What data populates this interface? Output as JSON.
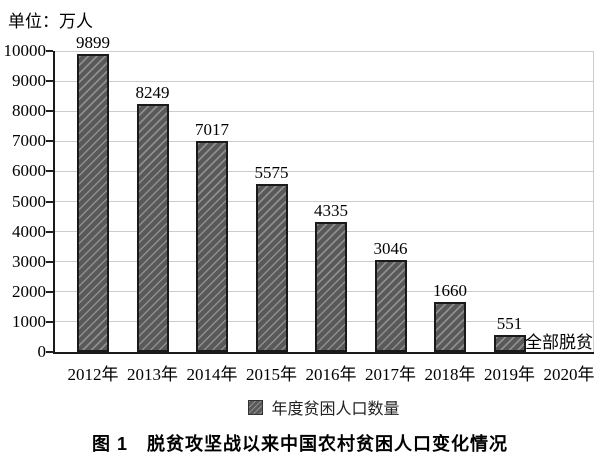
{
  "unit_label": "单位：万人",
  "legend_label": "年度贫困人口数量",
  "caption": "图 1　脱贫攻坚战以来中国农村贫困人口变化情况",
  "chart_data": {
    "type": "bar",
    "title": "图 1 脱贫攻坚战以来中国农村贫困人口变化情况",
    "unit": "单位：万人",
    "categories": [
      "2012年",
      "2013年",
      "2014年",
      "2015年",
      "2016年",
      "2017年",
      "2018年",
      "2019年",
      "2020年"
    ],
    "values": [
      9899,
      8249,
      7017,
      5575,
      4335,
      3046,
      1660,
      551,
      null
    ],
    "annotation": {
      "text": "全部脱贫",
      "category": "2020年",
      "meaning_value": 0
    },
    "legend": [
      "年度贫困人口数量"
    ],
    "legend_position": "bottom",
    "xlabel": "",
    "ylabel": "单位：万人",
    "ylim": [
      0,
      10000
    ],
    "ytick_step": 1000,
    "grid": true,
    "colors": {
      "bar_fill": "#595959",
      "bar_hatch": "#8e8e8e",
      "bar_border": "#1a1a1a",
      "gridline": "#cccccc",
      "axis": "#1a1a1a",
      "text": "#000000"
    }
  }
}
